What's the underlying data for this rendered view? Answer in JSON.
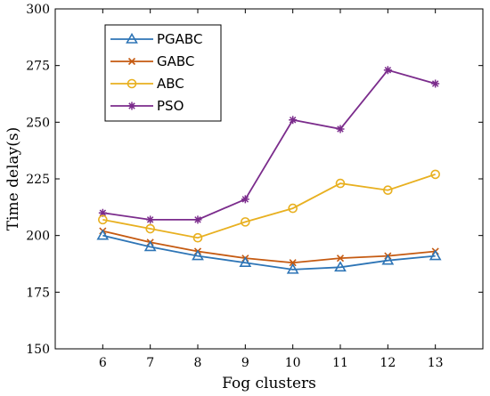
{
  "chart_data": {
    "type": "line",
    "xlabel": "Fog clusters",
    "ylabel": "Time delay(s)",
    "x": [
      6,
      7,
      8,
      9,
      10,
      11,
      12,
      13
    ],
    "xlim": [
      5,
      14
    ],
    "ylim": [
      150,
      300
    ],
    "xticks": [
      6,
      7,
      8,
      9,
      10,
      11,
      12,
      13
    ],
    "yticks": [
      150,
      175,
      200,
      225,
      250,
      275,
      300
    ],
    "grid": false,
    "legend_position": "top-left",
    "series": [
      {
        "name": "PGABC",
        "color": "#2e75b6",
        "marker": "triangle",
        "values": [
          200,
          195,
          191,
          188,
          185,
          186,
          189,
          191
        ]
      },
      {
        "name": "GABC",
        "color": "#c55a11",
        "marker": "x",
        "values": [
          202,
          197,
          193,
          190,
          188,
          190,
          191,
          193
        ]
      },
      {
        "name": "ABC",
        "color": "#e8b020",
        "marker": "circle",
        "values": [
          207,
          203,
          199,
          206,
          212,
          223,
          220,
          227
        ]
      },
      {
        "name": "PSO",
        "color": "#7b2c8c",
        "marker": "star",
        "values": [
          210,
          207,
          207,
          216,
          251,
          247,
          273,
          267
        ]
      }
    ]
  }
}
